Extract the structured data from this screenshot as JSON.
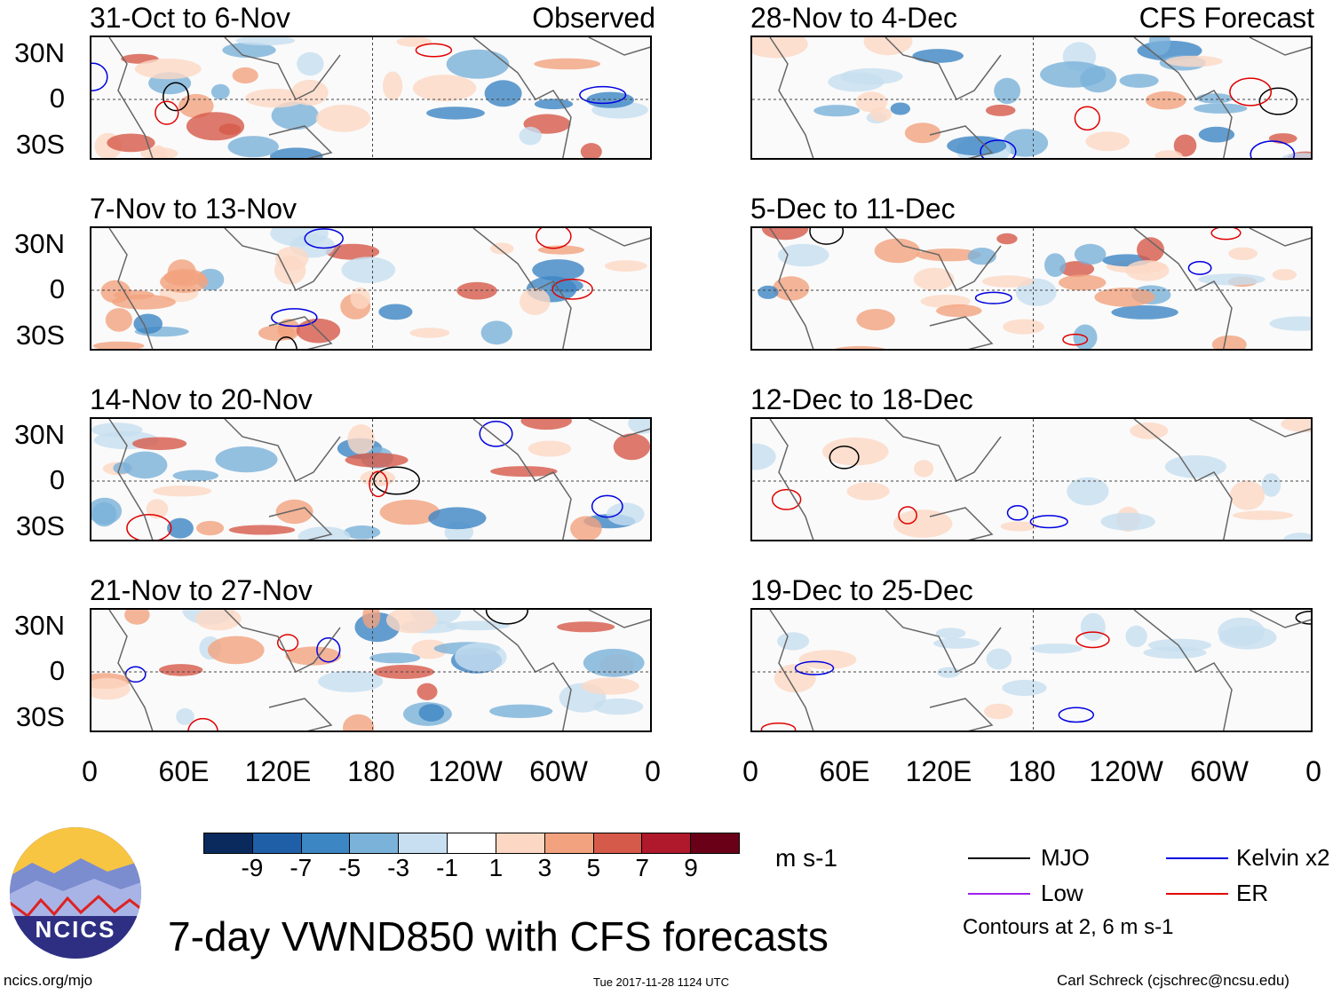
{
  "title": "7-day VWND850 with CFS forecasts",
  "left_column_tag": "Observed",
  "right_column_tag": "CFS Forecast",
  "panels_observed": [
    {
      "period": "31-Oct to 6-Nov"
    },
    {
      "period": "7-Nov to 13-Nov"
    },
    {
      "period": "14-Nov to 20-Nov"
    },
    {
      "period": "21-Nov to 27-Nov"
    }
  ],
  "panels_forecast": [
    {
      "period": "28-Nov to 4-Dec"
    },
    {
      "period": "5-Dec to 11-Dec"
    },
    {
      "period": "12-Dec to 18-Dec"
    },
    {
      "period": "19-Dec to 25-Dec"
    }
  ],
  "lat_labels": [
    "30N",
    "0",
    "30S"
  ],
  "lon_labels": [
    "0",
    "60E",
    "120E",
    "180",
    "120W",
    "60W",
    "0"
  ],
  "colorbar": {
    "units": "m s-1",
    "labels": [
      "-9",
      "-7",
      "-5",
      "-3",
      "-1",
      "1",
      "3",
      "5",
      "7",
      "9"
    ],
    "colors": [
      "#0a2a5e",
      "#1f5fa8",
      "#3d86c4",
      "#7bb2d9",
      "#c7dff0",
      "#ffffff",
      "#fcd8c4",
      "#f2a27e",
      "#d65a4a",
      "#b0182b",
      "#6a0018"
    ]
  },
  "legend": {
    "items": [
      {
        "label": "MJO",
        "color": "#000000"
      },
      {
        "label": "Kelvin x2",
        "color": "#0000e0"
      },
      {
        "label": "Low",
        "color": "#a020f0"
      },
      {
        "label": "ER",
        "color": "#e00000"
      }
    ],
    "note": "Contours at 2, 6 m s-1"
  },
  "logo_text": "NCICS",
  "footer": {
    "url": "ncics.org/mjo",
    "timestamp": "Tue 2017-11-28 1124 UTC",
    "author": "Carl Schreck (cjschrec@ncsu.edu)"
  }
}
